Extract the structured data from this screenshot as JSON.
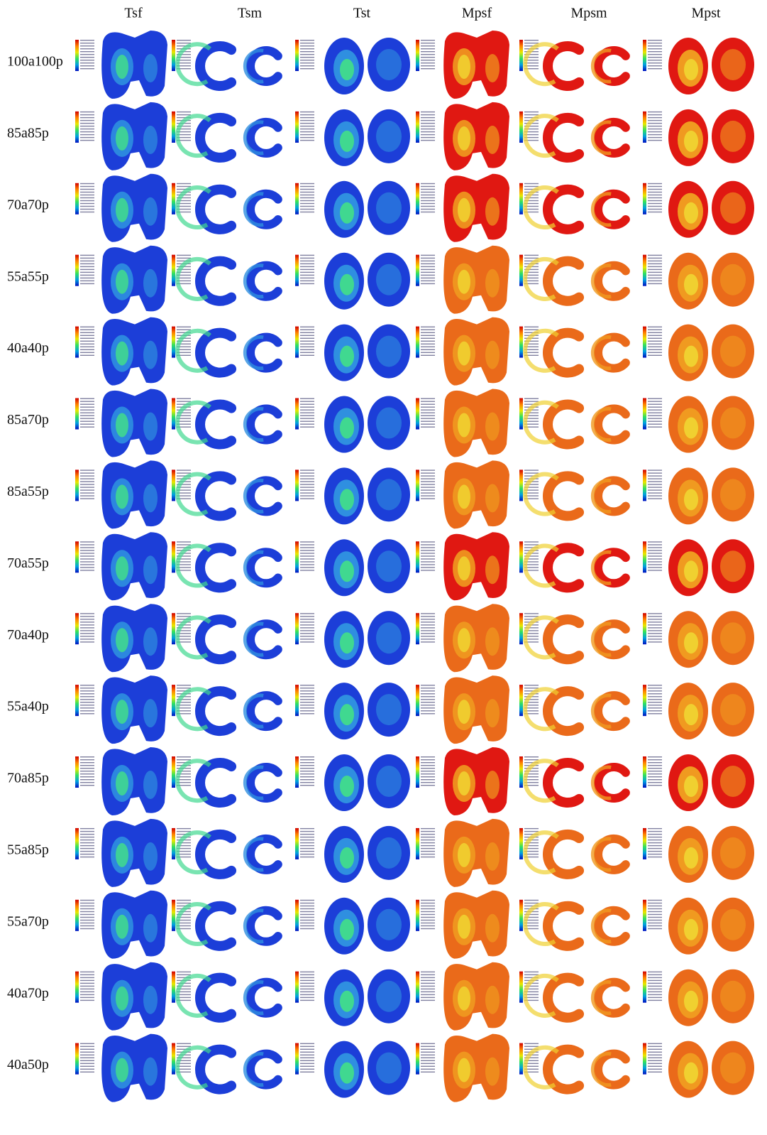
{
  "columns": [
    "Tsf",
    "Tsm",
    "Tst",
    "Mpsf",
    "Mpsm",
    "Mpst"
  ],
  "rows": [
    "100a100p",
    "85a85p",
    "70a70p",
    "55a55p",
    "40a40p",
    "85a70p",
    "85a55p",
    "70a55p",
    "70a40p",
    "55a40p",
    "70a85p",
    "55a85p",
    "55a70p",
    "40a70p",
    "40a50p"
  ]
}
